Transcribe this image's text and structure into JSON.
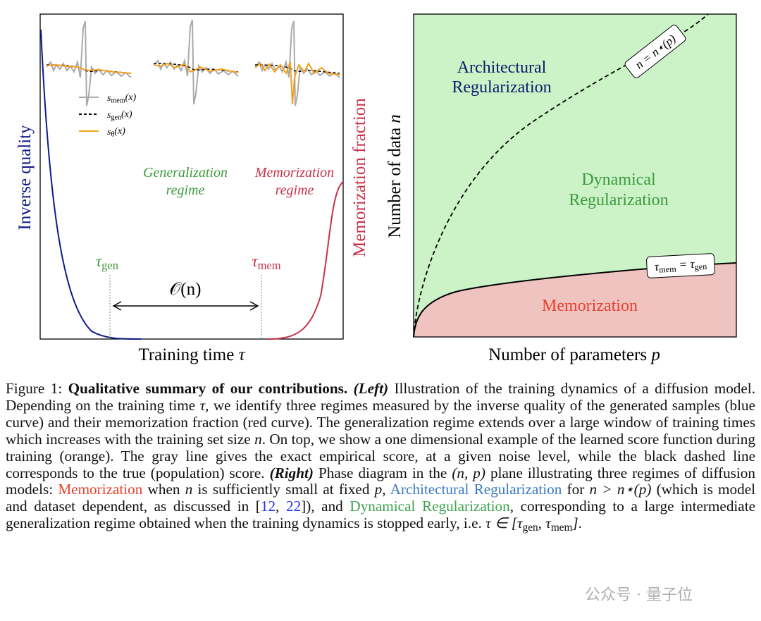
{
  "left_panel": {
    "y_label_left": "Inverse quality",
    "y_label_right": "Memorization fraction",
    "x_label": [
      {
        "text": "Training time ",
        "style": "plain"
      },
      {
        "text": "τ",
        "style": "math"
      }
    ],
    "legend": [
      [
        {
          "text": "s",
          "style": "math"
        },
        {
          "text": "mem",
          "style": "sub"
        },
        {
          "text": "(x)",
          "style": "math"
        }
      ],
      [
        {
          "text": "s",
          "style": "math"
        },
        {
          "text": "gen",
          "style": "sub"
        },
        {
          "text": "(x)",
          "style": "math"
        }
      ],
      [
        {
          "text": "s",
          "style": "math"
        },
        {
          "text": "θ",
          "style": "sub"
        },
        {
          "text": "(x)",
          "style": "math"
        }
      ]
    ],
    "generalization_regime": [
      "Generalization",
      "regime"
    ],
    "memorization_regime": [
      "Memorization",
      "regime"
    ],
    "tau_gen": [
      {
        "text": "τ",
        "style": "math"
      },
      {
        "text": "gen",
        "style": "sub"
      }
    ],
    "tau_mem": [
      {
        "text": "τ",
        "style": "math"
      },
      {
        "text": "mem",
        "style": "sub"
      }
    ],
    "window": "𝒪(n)"
  },
  "right_panel": {
    "x_label": [
      {
        "text": "Number of parameters ",
        "style": "plain"
      },
      {
        "text": "p",
        "style": "math"
      }
    ],
    "y_label": [
      {
        "text": "Number of data ",
        "style": "plain"
      },
      {
        "text": "n",
        "style": "math"
      }
    ],
    "architectural": [
      "Architectural",
      "Regularization"
    ],
    "dynamical": [
      "Dynamical",
      "Regularization"
    ],
    "memorization": "Memorization",
    "boundary_upper": "n = n⋆(p)",
    "boundary_lower": [
      {
        "text": "τ",
        "style": "math"
      },
      {
        "text": "mem",
        "style": "sub"
      },
      {
        "text": " = τ",
        "style": "math"
      },
      {
        "text": "gen",
        "style": "sub"
      }
    ]
  },
  "caption": {
    "runs": [
      {
        "text": "Figure 1: ",
        "style": "plain"
      },
      {
        "text": "Qualitative summary of our contributions.",
        "style": "bold"
      },
      {
        "text": " ",
        "style": "plain"
      },
      {
        "text": "(Left)",
        "style": "bolditalic"
      },
      {
        "text": " Illustration of the training dynamics of a diffusion model. Depending on the training time ",
        "style": "plain"
      },
      {
        "text": "τ",
        "style": "math"
      },
      {
        "text": ", we identify three regimes measured by the inverse quality of the generated samples (blue curve) and their memorization fraction (red curve). The generalization regime extends over a large window of training times which increases with the training set size ",
        "style": "plain"
      },
      {
        "text": "n",
        "style": "math"
      },
      {
        "text": ". On top, we show a one dimensional example of the learned score function during training (orange). The gray line gives the exact empirical score, at a given noise level, while the black dashed line corresponds to the true (population) score. ",
        "style": "plain"
      },
      {
        "text": "(Right)",
        "style": "bolditalic"
      },
      {
        "text": " Phase diagram in the ",
        "style": "plain"
      },
      {
        "text": "(n, p)",
        "style": "math"
      },
      {
        "text": " plane illustrating three regimes of diffusion models: ",
        "style": "plain"
      },
      {
        "text": "Memorization",
        "style": "red"
      },
      {
        "text": " when ",
        "style": "plain"
      },
      {
        "text": "n",
        "style": "math"
      },
      {
        "text": " is sufficiently small at fixed ",
        "style": "plain"
      },
      {
        "text": "p",
        "style": "math"
      },
      {
        "text": ", ",
        "style": "plain"
      },
      {
        "text": "Architectural Regularization",
        "style": "blue"
      },
      {
        "text": " for ",
        "style": "plain"
      },
      {
        "text": "n > n⋆(p)",
        "style": "math"
      },
      {
        "text": " (which is model and dataset dependent, as discussed in [",
        "style": "plain"
      },
      {
        "text": "12",
        "style": "link"
      },
      {
        "text": ", ",
        "style": "plain"
      },
      {
        "text": "22",
        "style": "link"
      },
      {
        "text": "]), and ",
        "style": "plain"
      },
      {
        "text": "Dynamical Regularization",
        "style": "green"
      },
      {
        "text": ", corresponding to a large intermediate generalization regime obtained when the training dynamics is stopped early, i.e. ",
        "style": "plain"
      },
      {
        "text": "τ ∈ [τ",
        "style": "math"
      },
      {
        "text": "gen",
        "style": "sub"
      },
      {
        "text": ", τ",
        "style": "math"
      },
      {
        "text": "mem",
        "style": "sub"
      },
      {
        "text": "]",
        "style": "math"
      },
      {
        "text": ".",
        "style": "plain"
      }
    ]
  },
  "watermark": "公众号 · 量子位"
}
